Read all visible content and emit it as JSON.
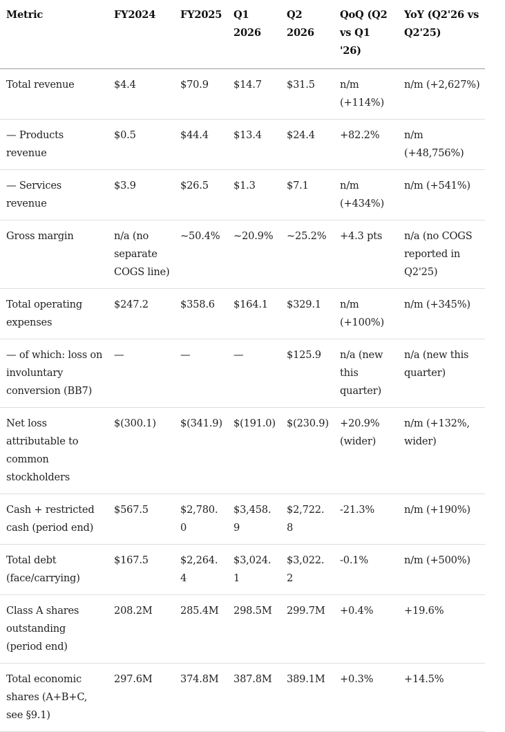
{
  "table": {
    "headers": [
      "Metric",
      "FY2024",
      "FY2025",
      "Q1 2026",
      "Q2 2026",
      "QoQ (Q2 vs Q1 '26)",
      "YoY (Q2'26 vs Q2'25)"
    ],
    "rows": [
      [
        "Total revenue",
        "$4.4",
        "$70.9",
        "$14.7",
        "$31.5",
        "n/m (+114%)",
        "n/m (+2,627%)"
      ],
      [
        "— Products revenue",
        "$0.5",
        "$44.4",
        "$13.4",
        "$24.4",
        "+82.2%",
        "n/m (+48,756%)"
      ],
      [
        "— Services revenue",
        "$3.9",
        "$26.5",
        "$1.3",
        "$7.1",
        "n/m (+434%)",
        "n/m (+541%)"
      ],
      [
        "Gross margin",
        "n/a (no separate COGS line)",
        "~50.4%",
        "~20.9%",
        "~25.2%",
        "+4.3 pts",
        "n/a (no COGS reported in Q2'25)"
      ],
      [
        "Total operating expenses",
        "$247.2",
        "$358.6",
        "$164.1",
        "$329.1",
        "n/m (+100%)",
        "n/m (+345%)"
      ],
      [
        "— of which: loss on involuntary conversion (BB7)",
        "—",
        "—",
        "—",
        "$125.9",
        "n/a (new this quarter)",
        "n/a (new this quarter)"
      ],
      [
        "Net loss attributable to common stockholders",
        "$(300.1)",
        "$(341.9)",
        "$(191.0)",
        "$(230.9)",
        "+20.9% (wider)",
        "n/m (+132%, wider)"
      ],
      [
        "Cash + restricted cash (period end)",
        "$567.5",
        "$2,780.0",
        "$3,458.9",
        "$2,722.8",
        "-21.3%",
        "n/m (+190%)"
      ],
      [
        "Total debt (face/carrying)",
        "$167.5",
        "$2,264.4",
        "$3,024.1",
        "$3,022.2",
        "-0.1%",
        "n/m (+500%)"
      ],
      [
        "Class A shares outstanding (period end)",
        "208.2M",
        "285.4M",
        "298.5M",
        "299.7M",
        "+0.4%",
        "+19.6%"
      ],
      [
        "Total economic shares (A+B+C, see §9.1)",
        "297.6M",
        "374.8M",
        "387.8M",
        "389.1M",
        "+0.3%",
        "+14.5%"
      ]
    ]
  }
}
